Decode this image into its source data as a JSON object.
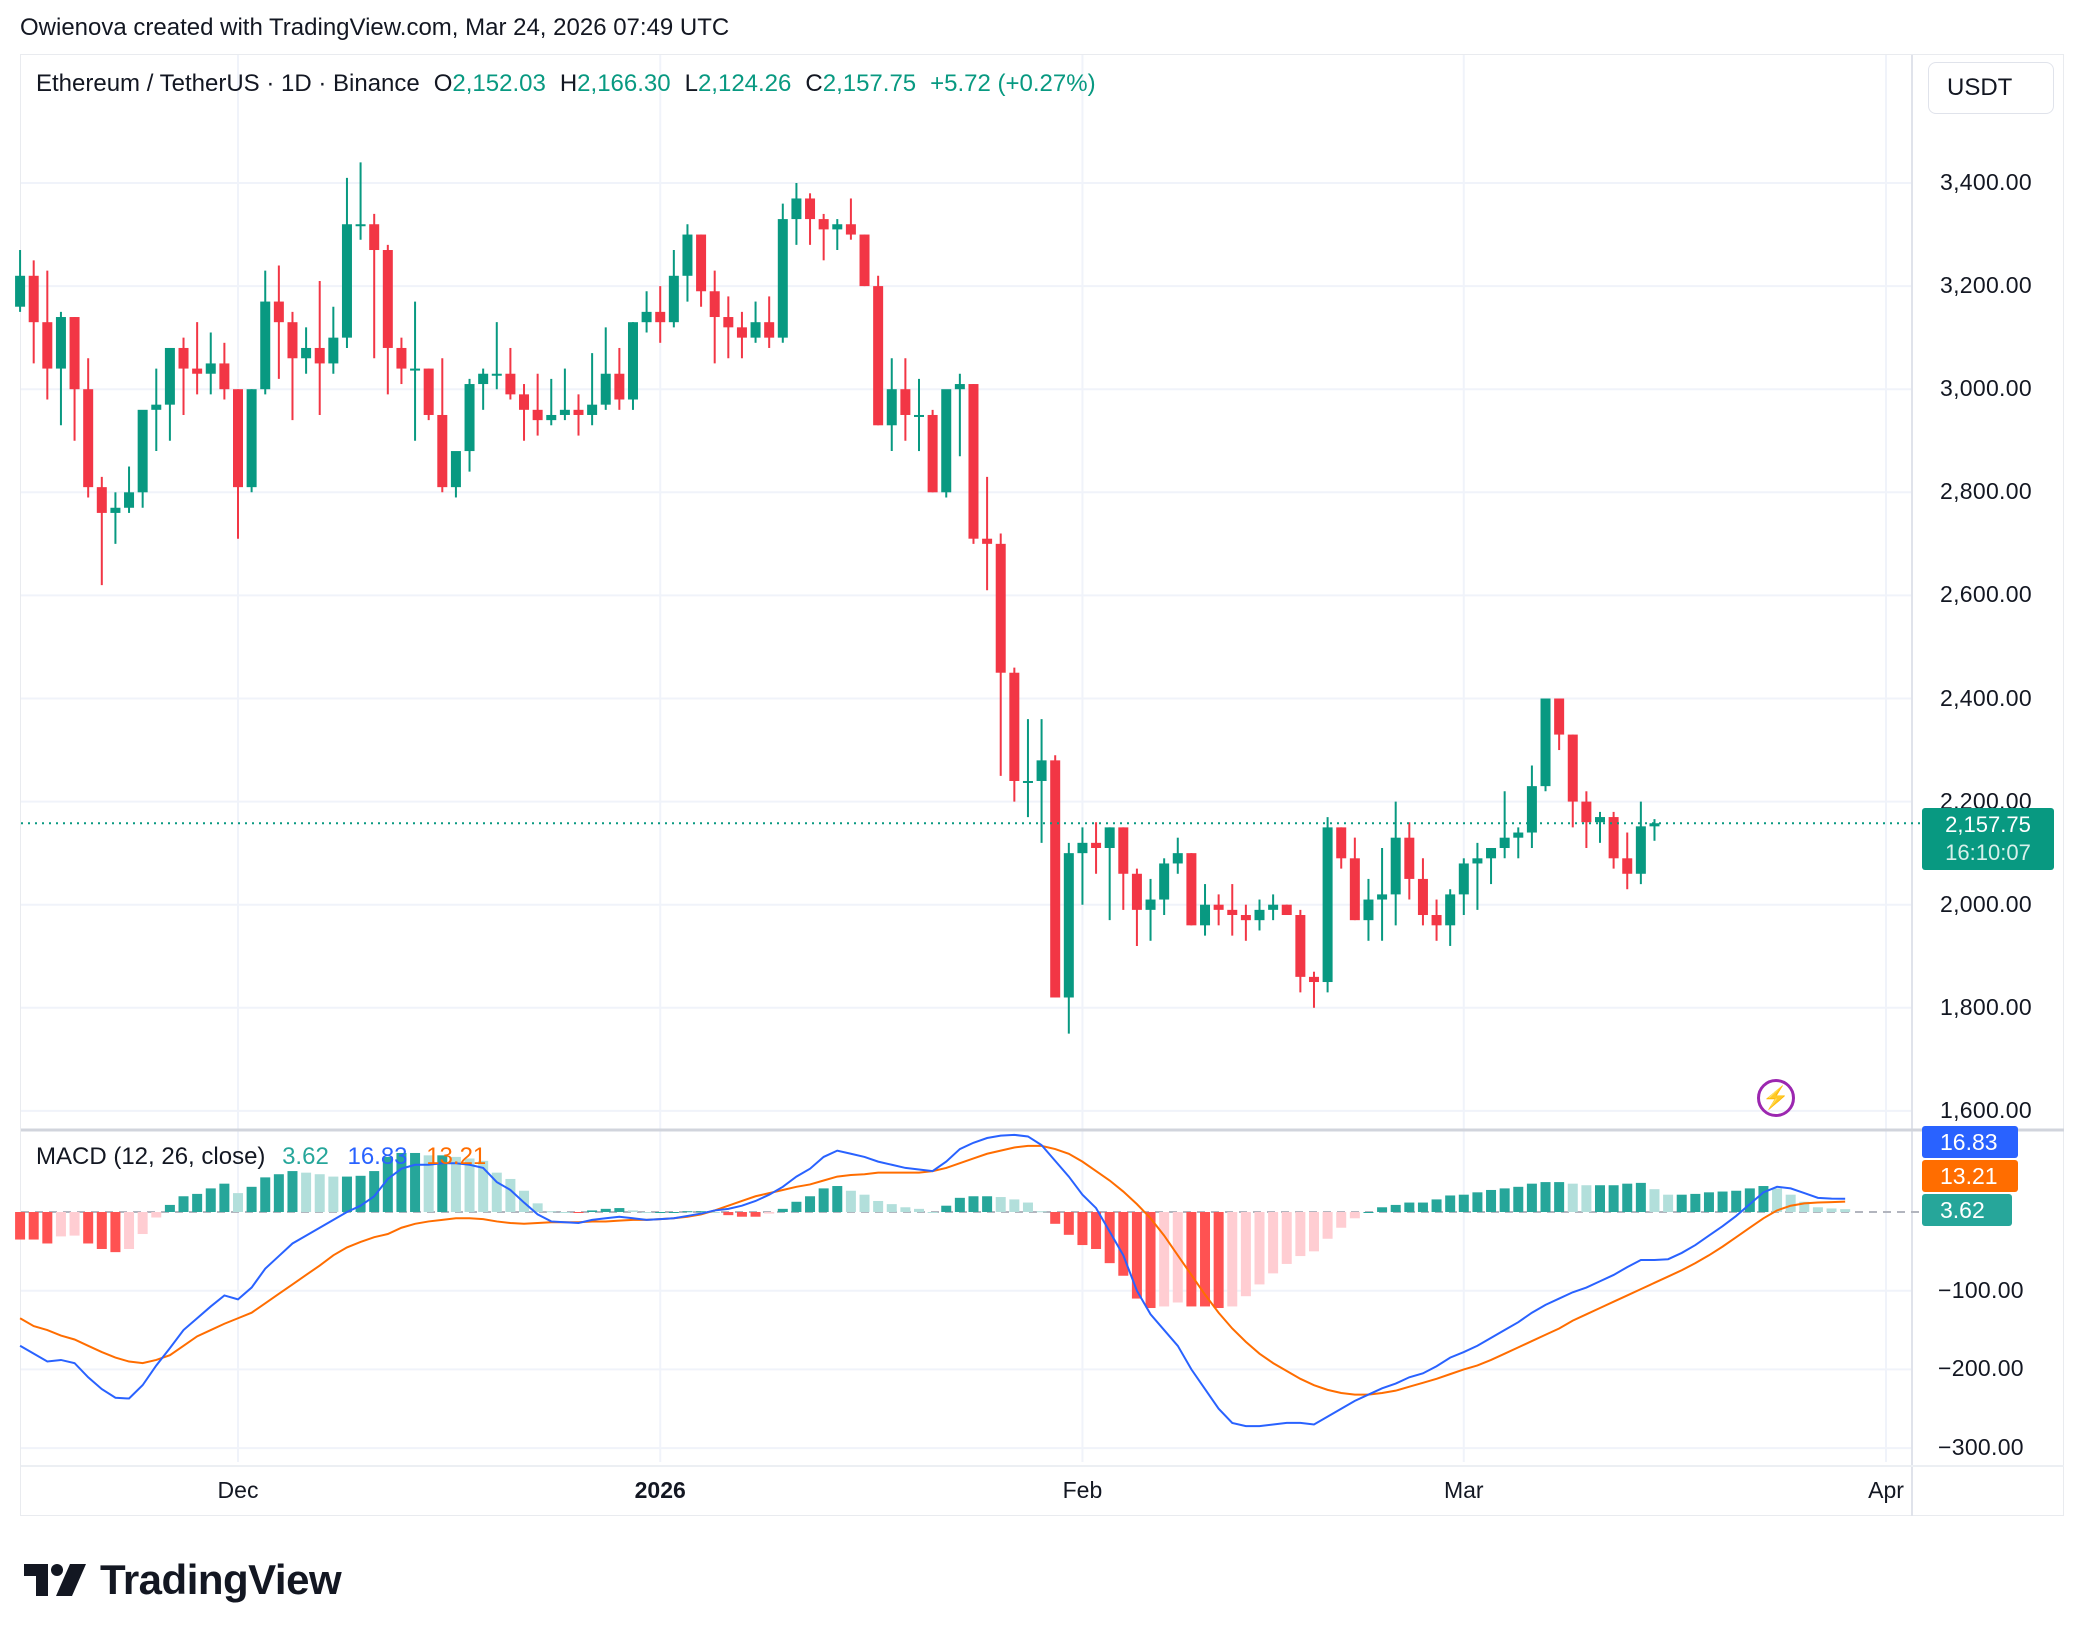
{
  "header": {
    "credit": "Owienova created with TradingView.com, Mar 24, 2026 07:49 UTC"
  },
  "legend": {
    "symbol": "Ethereum / TetherUS · 1D · Binance",
    "open_label": "O",
    "open": "2,152.03",
    "high_label": "H",
    "high": "2,166.30",
    "low_label": "L",
    "low": "2,124.26",
    "close_label": "C",
    "close": "2,157.75",
    "change": "+5.72 (+0.27%)"
  },
  "currency_button": "USDT",
  "price_axis": {
    "ticks": [
      "3,400.00",
      "3,200.00",
      "3,000.00",
      "2,800.00",
      "2,600.00",
      "2,400.00",
      "2,200.00",
      "2,000.00",
      "1,800.00",
      "1,600.00"
    ],
    "tick_values": [
      3400,
      3200,
      3000,
      2800,
      2600,
      2400,
      2200,
      2000,
      1800,
      1600
    ]
  },
  "last_price_tag": {
    "price": "2,157.75",
    "countdown": "16:10:07"
  },
  "macd": {
    "title": "MACD (12, 26, close)",
    "histogram": "3.62",
    "macd": "16.83",
    "signal": "13.21",
    "axis_ticks": [
      "−100.00",
      "−200.00",
      "−300.00"
    ],
    "axis_values": [
      -100,
      -200,
      -300
    ]
  },
  "time_axis": {
    "labels": [
      {
        "text": "Dec",
        "day": 0,
        "bold": false
      },
      {
        "text": "2026",
        "day": 31,
        "bold": true
      },
      {
        "text": "Feb",
        "day": 62,
        "bold": false
      },
      {
        "text": "Mar",
        "day": 90,
        "bold": false
      },
      {
        "text": "Apr",
        "day": 121,
        "bold": false
      }
    ]
  },
  "colors": {
    "up": "#089981",
    "down": "#f23645",
    "macd_line": "#2962ff",
    "signal_line": "#ff6d00",
    "hist_up_strong": "#26a69a",
    "hist_up_weak": "#b2dfdb",
    "hist_down_strong": "#ff5252",
    "hist_down_weak": "#ffcdd2",
    "grid": "#f0f3fa",
    "alert_icon": "#9c27b0"
  },
  "icons": {
    "alert": "lightning-bolt-icon",
    "logo": "tradingview-logo-icon"
  },
  "brand": "TradingView",
  "chart_data": {
    "type": "candlestick",
    "title": "Ethereum / TetherUS · 1D · Binance",
    "xlabel": "",
    "ylabel": "USDT",
    "ylim": [
      1550,
      3480
    ],
    "x_start": "2025-11-15",
    "x_end": "2026-03-24",
    "ohlc": [
      [
        3160,
        3270,
        3150,
        3220
      ],
      [
        3220,
        3250,
        3050,
        3130
      ],
      [
        3130,
        3230,
        2980,
        3040
      ],
      [
        3040,
        3150,
        2930,
        3140
      ],
      [
        3140,
        3140,
        2900,
        3000
      ],
      [
        3000,
        3060,
        2790,
        2810
      ],
      [
        2810,
        2830,
        2620,
        2760
      ],
      [
        2760,
        2800,
        2700,
        2770
      ],
      [
        2770,
        2850,
        2760,
        2800
      ],
      [
        2800,
        2950,
        2770,
        2960
      ],
      [
        2960,
        3040,
        2880,
        2970
      ],
      [
        2970,
        3080,
        2900,
        3080
      ],
      [
        3080,
        3100,
        2950,
        3040
      ],
      [
        3040,
        3130,
        2990,
        3030
      ],
      [
        3030,
        3110,
        2990,
        3050
      ],
      [
        3050,
        3090,
        2980,
        3000
      ],
      [
        3000,
        3000,
        2710,
        2810
      ],
      [
        2810,
        3000,
        2800,
        3000
      ],
      [
        3000,
        3230,
        2990,
        3170
      ],
      [
        3170,
        3240,
        3020,
        3130
      ],
      [
        3130,
        3150,
        2940,
        3060
      ],
      [
        3060,
        3120,
        3030,
        3080
      ],
      [
        3080,
        3210,
        2950,
        3050
      ],
      [
        3050,
        3160,
        3030,
        3100
      ],
      [
        3100,
        3410,
        3080,
        3320
      ],
      [
        3320,
        3440,
        3290,
        3320
      ],
      [
        3320,
        3340,
        3060,
        3270
      ],
      [
        3270,
        3280,
        2990,
        3080
      ],
      [
        3080,
        3100,
        3010,
        3040
      ],
      [
        3040,
        3170,
        2900,
        3040
      ],
      [
        3040,
        3040,
        2940,
        2950
      ],
      [
        2950,
        3060,
        2800,
        2810
      ],
      [
        2810,
        2850,
        2790,
        2880
      ],
      [
        2880,
        3020,
        2840,
        3010
      ],
      [
        3010,
        3040,
        2960,
        3030
      ],
      [
        3030,
        3130,
        3000,
        3030
      ],
      [
        3030,
        3080,
        2980,
        2990
      ],
      [
        2990,
        3010,
        2900,
        2960
      ],
      [
        2960,
        3030,
        2910,
        2940
      ],
      [
        2940,
        3020,
        2930,
        2950
      ],
      [
        2950,
        3040,
        2940,
        2960
      ],
      [
        2960,
        2990,
        2910,
        2950
      ],
      [
        2950,
        3070,
        2930,
        2970
      ],
      [
        2970,
        3120,
        2960,
        3030
      ],
      [
        3030,
        3080,
        2960,
        2980
      ],
      [
        2980,
        3130,
        2960,
        3130
      ],
      [
        3130,
        3190,
        3110,
        3150
      ],
      [
        3150,
        3200,
        3090,
        3130
      ],
      [
        3130,
        3270,
        3120,
        3220
      ],
      [
        3220,
        3320,
        3170,
        3300
      ],
      [
        3300,
        3300,
        3160,
        3190
      ],
      [
        3190,
        3230,
        3050,
        3140
      ],
      [
        3140,
        3180,
        3060,
        3120
      ],
      [
        3120,
        3150,
        3060,
        3100
      ],
      [
        3100,
        3170,
        3090,
        3130
      ],
      [
        3130,
        3180,
        3080,
        3100
      ],
      [
        3100,
        3360,
        3090,
        3330
      ],
      [
        3330,
        3400,
        3280,
        3370
      ],
      [
        3370,
        3380,
        3280,
        3330
      ],
      [
        3330,
        3340,
        3250,
        3310
      ],
      [
        3310,
        3330,
        3270,
        3320
      ],
      [
        3320,
        3370,
        3290,
        3300
      ],
      [
        3300,
        3300,
        3200,
        3200
      ],
      [
        3200,
        3220,
        2930,
        2930
      ],
      [
        2930,
        3060,
        2880,
        3000
      ],
      [
        3000,
        3060,
        2900,
        2950
      ],
      [
        2950,
        3020,
        2880,
        2950
      ],
      [
        2950,
        2960,
        2800,
        2800
      ],
      [
        2800,
        2980,
        2790,
        3000
      ],
      [
        3000,
        3030,
        2870,
        3010
      ],
      [
        3010,
        3010,
        2700,
        2710
      ],
      [
        2710,
        2830,
        2610,
        2700
      ],
      [
        2700,
        2720,
        2250,
        2450
      ],
      [
        2450,
        2460,
        2200,
        2240
      ],
      [
        2240,
        2360,
        2170,
        2240
      ],
      [
        2240,
        2360,
        2120,
        2280
      ],
      [
        2280,
        2290,
        1820,
        1820
      ],
      [
        1820,
        2120,
        1750,
        2100
      ],
      [
        2100,
        2150,
        2000,
        2120
      ],
      [
        2120,
        2160,
        2060,
        2110
      ],
      [
        2110,
        2150,
        1970,
        2150
      ],
      [
        2150,
        2150,
        1990,
        2060
      ],
      [
        2060,
        2070,
        1920,
        1990
      ],
      [
        1990,
        2050,
        1930,
        2010
      ],
      [
        2010,
        2090,
        1980,
        2080
      ],
      [
        2080,
        2130,
        2060,
        2100
      ],
      [
        2100,
        2100,
        1960,
        1960
      ],
      [
        1960,
        2040,
        1940,
        2000
      ],
      [
        2000,
        2020,
        1960,
        1990
      ],
      [
        1990,
        2040,
        1940,
        1980
      ],
      [
        1980,
        2000,
        1930,
        1970
      ],
      [
        1970,
        2010,
        1950,
        1990
      ],
      [
        1990,
        2020,
        1970,
        2000
      ],
      [
        2000,
        2000,
        1980,
        1980
      ],
      [
        1980,
        1990,
        1830,
        1860
      ],
      [
        1860,
        1870,
        1800,
        1850
      ],
      [
        1850,
        2170,
        1830,
        2150
      ],
      [
        2150,
        2150,
        2070,
        2090
      ],
      [
        2090,
        2130,
        1970,
        1970
      ],
      [
        1970,
        2050,
        1930,
        2010
      ],
      [
        2010,
        2110,
        1930,
        2020
      ],
      [
        2020,
        2200,
        1960,
        2130
      ],
      [
        2130,
        2160,
        2010,
        2050
      ],
      [
        2050,
        2090,
        1960,
        1980
      ],
      [
        1980,
        2010,
        1930,
        1960
      ],
      [
        1960,
        2030,
        1920,
        2020
      ],
      [
        2020,
        2090,
        1980,
        2080
      ],
      [
        2080,
        2120,
        1990,
        2090
      ],
      [
        2090,
        2110,
        2040,
        2110
      ],
      [
        2110,
        2220,
        2090,
        2130
      ],
      [
        2130,
        2150,
        2090,
        2140
      ],
      [
        2140,
        2270,
        2110,
        2230
      ],
      [
        2230,
        2400,
        2220,
        2400
      ],
      [
        2400,
        2390,
        2300,
        2330
      ],
      [
        2330,
        2330,
        2150,
        2200
      ],
      [
        2200,
        2220,
        2110,
        2160
      ],
      [
        2160,
        2180,
        2120,
        2170
      ],
      [
        2170,
        2180,
        2070,
        2090
      ],
      [
        2090,
        2140,
        2030,
        2060
      ],
      [
        2060,
        2200,
        2040,
        2152
      ],
      [
        2152,
        2166,
        2124,
        2158
      ]
    ],
    "macd_line": [
      -170,
      -180,
      -190,
      -188,
      -192,
      -210,
      -225,
      -236,
      -237,
      -220,
      -195,
      -173,
      -150,
      -135,
      -120,
      -106,
      -111,
      -96,
      -72,
      -56,
      -40,
      -30,
      -20,
      -10,
      0,
      8,
      20,
      42,
      55,
      60,
      60,
      62,
      62,
      60,
      56,
      38,
      28,
      12,
      -3,
      -12,
      -13,
      -14,
      -10,
      -8,
      -6,
      -8,
      -10,
      -9,
      -8,
      -5,
      -2,
      2,
      4,
      8,
      14,
      22,
      32,
      45,
      55,
      70,
      78,
      74,
      70,
      64,
      60,
      56,
      54,
      52,
      64,
      80,
      88,
      94,
      97,
      98,
      96,
      85,
      65,
      45,
      22,
      5,
      -25,
      -55,
      -100,
      -130,
      -150,
      -170,
      -200,
      -225,
      -250,
      -268,
      -272,
      -272,
      -270,
      -268,
      -268,
      -270,
      -260,
      -250,
      -240,
      -232,
      -224,
      -218,
      -210,
      -205,
      -196,
      -185,
      -178,
      -170,
      -160,
      -150,
      -140,
      -128,
      -118,
      -110,
      -102,
      -96,
      -88,
      -80,
      -70,
      -61,
      -61,
      -60,
      -52,
      -42,
      -30,
      -18,
      -5,
      10,
      25,
      32,
      30,
      24,
      18,
      17,
      16.83
    ],
    "signal_line": [
      -135,
      -145,
      -150,
      -157,
      -162,
      -170,
      -178,
      -185,
      -190,
      -192,
      -188,
      -182,
      -170,
      -158,
      -150,
      -142,
      -135,
      -128,
      -116,
      -104,
      -92,
      -80,
      -68,
      -55,
      -45,
      -38,
      -32,
      -28,
      -20,
      -15,
      -12,
      -10,
      -8,
      -8,
      -9,
      -12,
      -14,
      -15,
      -14,
      -13,
      -13,
      -13,
      -12,
      -12,
      -11,
      -10,
      -10,
      -9,
      -8,
      -6,
      -3,
      2,
      8,
      14,
      20,
      24,
      28,
      32,
      35,
      40,
      45,
      47,
      48,
      50,
      50,
      50,
      50,
      52,
      56,
      62,
      68,
      74,
      78,
      82,
      84,
      84,
      80,
      74,
      64,
      52,
      40,
      26,
      10,
      -8,
      -30,
      -55,
      -80,
      -105,
      -128,
      -148,
      -165,
      -180,
      -192,
      -202,
      -212,
      -220,
      -226,
      -230,
      -232,
      -232,
      -230,
      -227,
      -222,
      -217,
      -212,
      -206,
      -200,
      -195,
      -188,
      -180,
      -172,
      -164,
      -156,
      -148,
      -138,
      -130,
      -122,
      -114,
      -106,
      -98,
      -90,
      -82,
      -74,
      -65,
      -55,
      -44,
      -32,
      -20,
      -8,
      2,
      8,
      11,
      12,
      12.5,
      13.21
    ]
  }
}
